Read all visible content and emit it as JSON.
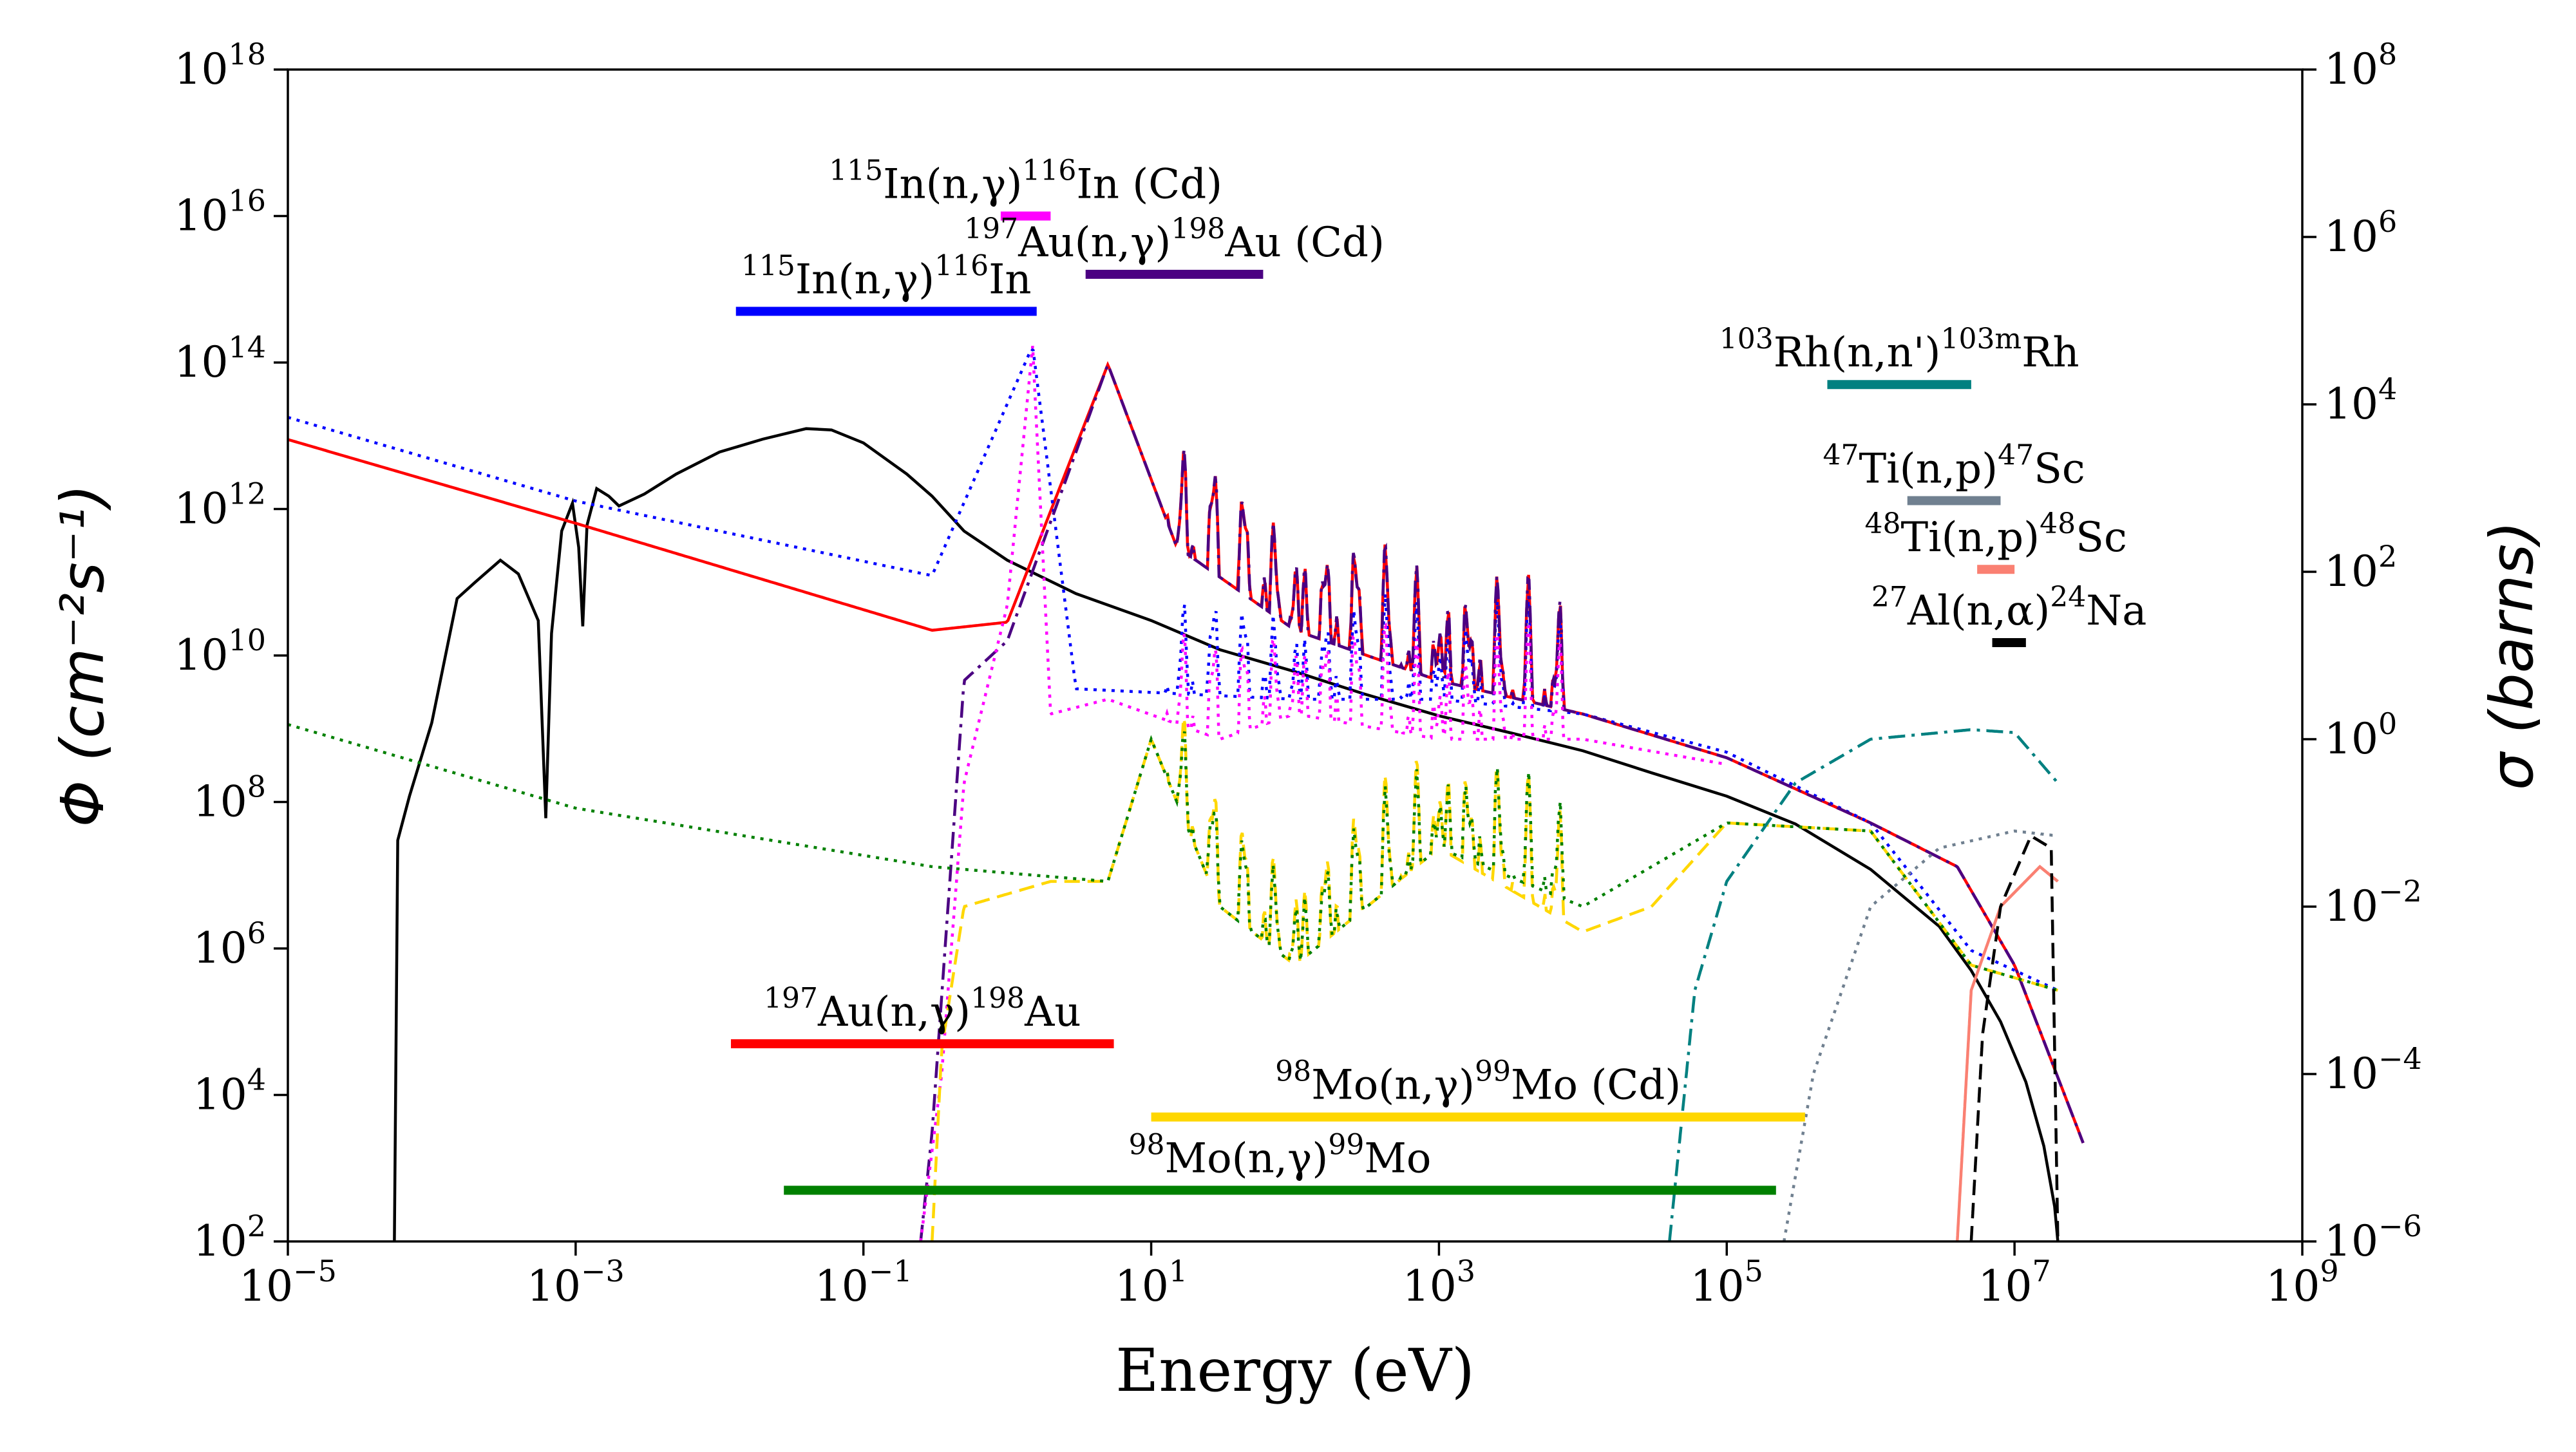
{
  "chart_data": {
    "type": "line",
    "xlabel": "Energy (eV)",
    "ylabel_left": "Φ (cm⁻²s⁻¹)",
    "ylabel_right": "σ (barns)",
    "x_scale": "log",
    "y_scale": "log",
    "xlim": [
      1e-05,
      1000000000.0
    ],
    "ylim_left": [
      100.0,
      1e+18
    ],
    "ylim_right": [
      1e-06,
      100000000.0
    ],
    "grid": false,
    "x_ticks": [
      {
        "base": "10",
        "exp": "−5",
        "value": 1e-05
      },
      {
        "base": "10",
        "exp": "−3",
        "value": 0.001
      },
      {
        "base": "10",
        "exp": "−1",
        "value": 0.1
      },
      {
        "base": "10",
        "exp": "1",
        "value": 10.0
      },
      {
        "base": "10",
        "exp": "3",
        "value": 1000.0
      },
      {
        "base": "10",
        "exp": "5",
        "value": 100000.0
      },
      {
        "base": "10",
        "exp": "7",
        "value": 10000000.0
      },
      {
        "base": "10",
        "exp": "9",
        "value": 1000000000.0
      }
    ],
    "y_ticks_left": [
      {
        "base": "10",
        "exp": "2",
        "value": 100.0
      },
      {
        "base": "10",
        "exp": "4",
        "value": 10000.0
      },
      {
        "base": "10",
        "exp": "6",
        "value": 1000000.0
      },
      {
        "base": "10",
        "exp": "8",
        "value": 100000000.0
      },
      {
        "base": "10",
        "exp": "10",
        "value": 10000000000.0
      },
      {
        "base": "10",
        "exp": "12",
        "value": 1000000000000.0
      },
      {
        "base": "10",
        "exp": "14",
        "value": 100000000000000.0
      },
      {
        "base": "10",
        "exp": "16",
        "value": 1e+16
      },
      {
        "base": "10",
        "exp": "18",
        "value": 1e+18
      }
    ],
    "y_ticks_right": [
      {
        "base": "10",
        "exp": "−6",
        "value": 1e-06
      },
      {
        "base": "10",
        "exp": "−4",
        "value": 0.0001
      },
      {
        "base": "10",
        "exp": "−2",
        "value": 0.01
      },
      {
        "base": "10",
        "exp": "0",
        "value": 1
      },
      {
        "base": "10",
        "exp": "2",
        "value": 100.0
      },
      {
        "base": "10",
        "exp": "4",
        "value": 10000.0
      },
      {
        "base": "10",
        "exp": "6",
        "value": 1000000.0
      },
      {
        "base": "10",
        "exp": "8",
        "value": 100000000.0
      }
    ],
    "flux_series": {
      "axis": "left",
      "color": "#000000",
      "style": "solid",
      "points": [
        [
          5.5e-05,
          100.0
        ],
        [
          5.8e-05,
          30000000.0
        ],
        [
          7e-05,
          120000000.0
        ],
        [
          0.0001,
          1200000000.0
        ],
        [
          0.00015,
          60000000000.0
        ],
        [
          0.0002,
          100000000000.0
        ],
        [
          0.0003,
          200000000000.0
        ],
        [
          0.0004,
          130000000000.0
        ],
        [
          0.00055,
          30000000000.0
        ],
        [
          0.00062,
          60000000.0
        ],
        [
          0.00068,
          20000000000.0
        ],
        [
          0.0008,
          500000000000.0
        ],
        [
          0.00095,
          1200000000000.0
        ],
        [
          0.00105,
          300000000000.0
        ],
        [
          0.00112,
          25000000000.0
        ],
        [
          0.0012,
          600000000000.0
        ],
        [
          0.0014,
          1900000000000.0
        ],
        [
          0.0017,
          1500000000000.0
        ],
        [
          0.002,
          1100000000000.0
        ],
        [
          0.003,
          1600000000000.0
        ],
        [
          0.005,
          3000000000000.0
        ],
        [
          0.01,
          6000000000000.0
        ],
        [
          0.02,
          9000000000000.0
        ],
        [
          0.04,
          12500000000000.0
        ],
        [
          0.06,
          12000000000000.0
        ],
        [
          0.1,
          8000000000000.0
        ],
        [
          0.2,
          3000000000000.0
        ],
        [
          0.3,
          1500000000000.0
        ],
        [
          0.5,
          500000000000.0
        ],
        [
          1,
          200000000000.0
        ],
        [
          3,
          70000000000.0
        ],
        [
          10,
          30000000000.0
        ],
        [
          30,
          12000000000.0
        ],
        [
          100,
          6000000000.0
        ],
        [
          300,
          3000000000.0
        ],
        [
          1000.0,
          1500000000.0
        ],
        [
          3000.0,
          900000000.0
        ],
        [
          10000.0,
          500000000.0
        ],
        [
          30000.0,
          250000000.0
        ],
        [
          100000.0,
          120000000.0
        ],
        [
          300000.0,
          50000000.0
        ],
        [
          1000000.0,
          12000000.0
        ],
        [
          3000000.0,
          2000000.0
        ],
        [
          5000000.0,
          500000.0
        ],
        [
          8000000.0,
          100000.0
        ],
        [
          12000000.0,
          15000.0
        ],
        [
          16000000.0,
          2000.0
        ],
        [
          19000000.0,
          300.0
        ],
        [
          20000000.0,
          100.0
        ]
      ]
    },
    "cross_sections": [
      {
        "axis": "right",
        "color": "#ff0000",
        "style": "solid",
        "anchors": [
          [
            1e-05,
            3800.0
          ],
          [
            0.001,
            380.0
          ],
          [
            0.3,
            20
          ],
          [
            1,
            25
          ],
          [
            5,
            30000.0
          ],
          [
            15,
            200.0
          ],
          [
            100,
            20.0
          ],
          [
            1000.0,
            5
          ],
          [
            10000.0,
            2
          ],
          [
            100000.0,
            0.6
          ],
          [
            1000000.0,
            0.1
          ],
          [
            4000000.0,
            0.03
          ],
          [
            10000000.0,
            0.002
          ],
          [
            30000000.0,
            1.5e-05
          ]
        ]
      },
      {
        "axis": "right",
        "color": "#0000ff",
        "style": "dotted",
        "anchors": [
          [
            1e-05,
            7000.0
          ],
          [
            0.001,
            700.0
          ],
          [
            0.3,
            90
          ],
          [
            1.5,
            50000.0
          ],
          [
            3,
            4
          ],
          [
            100,
            3
          ],
          [
            1000.0,
            3
          ],
          [
            10000.0,
            2
          ],
          [
            100000.0,
            0.7
          ],
          [
            1000000.0,
            0.1
          ],
          [
            5000000.0,
            0.003
          ],
          [
            20000000.0,
            0.001
          ]
        ]
      },
      {
        "axis": "right",
        "color": "#4b0082",
        "style": "dashdot",
        "anchors": [
          [
            0.25,
            1e-06
          ],
          [
            0.3,
            2e-05
          ],
          [
            0.5,
            5
          ],
          [
            1,
            15
          ],
          [
            5,
            30000.0
          ],
          [
            15,
            200.0
          ],
          [
            100,
            20.0
          ],
          [
            1000.0,
            5
          ],
          [
            10000.0,
            2
          ],
          [
            100000.0,
            0.6
          ],
          [
            1000000.0,
            0.1
          ],
          [
            4000000.0,
            0.03
          ],
          [
            10000000.0,
            0.002
          ],
          [
            30000000.0,
            1.5e-05
          ]
        ]
      },
      {
        "axis": "right",
        "color": "#ff00ff",
        "style": "dotted",
        "anchors": [
          [
            0.25,
            1e-06
          ],
          [
            0.35,
            0.0001
          ],
          [
            0.5,
            0.3
          ],
          [
            1,
            40
          ],
          [
            1.5,
            50000.0
          ],
          [
            2,
            2
          ],
          [
            5,
            3
          ],
          [
            30,
            1
          ],
          [
            100,
            2
          ],
          [
            1000.0,
            1
          ],
          [
            10000.0,
            1
          ],
          [
            100000.0,
            0.5
          ]
        ]
      },
      {
        "axis": "right",
        "color": "#ffd700",
        "style": "dashed",
        "anchors": [
          [
            0.3,
            1e-06
          ],
          [
            0.35,
            0.0002
          ],
          [
            0.5,
            0.01
          ],
          [
            2,
            0.02
          ],
          [
            5,
            0.02
          ],
          [
            10,
            1
          ],
          [
            30,
            0.01
          ],
          [
            100,
            0.002
          ],
          [
            1000.0,
            0.05
          ],
          [
            10000.0,
            0.005
          ],
          [
            30000.0,
            0.01
          ],
          [
            100000.0,
            0.1
          ],
          [
            1000000.0,
            0.08
          ],
          [
            5000000.0,
            0.002
          ],
          [
            20000000.0,
            0.001
          ]
        ]
      },
      {
        "axis": "right",
        "color": "#008000",
        "style": "dotted",
        "anchors": [
          [
            1e-05,
            1.5
          ],
          [
            0.001,
            0.15
          ],
          [
            0.3,
            0.03
          ],
          [
            5,
            0.02
          ],
          [
            10,
            1
          ],
          [
            30,
            0.01
          ],
          [
            100,
            0.002
          ],
          [
            1000.0,
            0.05
          ],
          [
            10000.0,
            0.01
          ],
          [
            100000.0,
            0.1
          ],
          [
            1000000.0,
            0.08
          ],
          [
            5000000.0,
            0.002
          ],
          [
            20000000.0,
            0.001
          ]
        ]
      },
      {
        "axis": "right",
        "color": "#008080",
        "style": "dashdot",
        "anchors": [
          [
            40000.0,
            1e-06
          ],
          [
            60000.0,
            0.001
          ],
          [
            100000.0,
            0.02
          ],
          [
            300000.0,
            0.3
          ],
          [
            1000000.0,
            1
          ],
          [
            5000000.0,
            1.3
          ],
          [
            10000000.0,
            1.2
          ],
          [
            20000000.0,
            0.3
          ]
        ]
      },
      {
        "axis": "right",
        "color": "#708090",
        "style": "dotted",
        "anchors": [
          [
            250000.0,
            1e-06
          ],
          [
            400000.0,
            0.0001
          ],
          [
            1000000.0,
            0.01
          ],
          [
            3000000.0,
            0.05
          ],
          [
            10000000.0,
            0.08
          ],
          [
            20000000.0,
            0.07
          ]
        ]
      },
      {
        "axis": "right",
        "color": "#fa8072",
        "style": "solid",
        "anchors": [
          [
            4000000.0,
            1e-06
          ],
          [
            5000000.0,
            0.001
          ],
          [
            8000000.0,
            0.01
          ],
          [
            15000000.0,
            0.03
          ],
          [
            20000000.0,
            0.02
          ]
        ]
      },
      {
        "axis": "right",
        "color": "#000000",
        "style": "dashed",
        "anchors": [
          [
            5000000.0,
            1e-06
          ],
          [
            6000000.0,
            0.0003
          ],
          [
            8000000.0,
            0.01
          ],
          [
            13000000.0,
            0.07
          ],
          [
            18000000.0,
            0.05
          ],
          [
            20000000.0,
            1e-06
          ]
        ]
      }
    ],
    "energy_ranges": [
      {
        "label": "In(n,γ)In (Cd)",
        "sup1": "115",
        "sup2": "116",
        "sup3": "",
        "color": "#ff00ff",
        "e_range": [
          0.9,
          2.0
        ],
        "flux_level": 1e+16
      },
      {
        "label": "Au(n,γ)Au (Cd)",
        "sup1": "197",
        "sup2": "198",
        "sup3": "",
        "color": "#4b0082",
        "e_range": [
          3.5,
          60
        ],
        "flux_level": 1600000000000000.0
      },
      {
        "label": "In(n,γ)In",
        "sup1": "115",
        "sup2": "116",
        "sup3": "",
        "color": "#0000ff",
        "e_range": [
          0.013,
          1.6
        ],
        "flux_level": 500000000000000.0
      },
      {
        "label": "Rh(n,n')Rh",
        "sup1": "103",
        "sup2": "103",
        "sup3": "m",
        "color": "#008080",
        "e_range": [
          500000.0,
          5000000.0
        ],
        "flux_level": 50000000000000.0
      },
      {
        "label": "Ti(n,p)Sc",
        "sup1": "47",
        "sup2": "47",
        "sup3": "",
        "color": "#708090",
        "e_range": [
          1800000.0,
          8000000.0
        ],
        "flux_level": 1300000000000.0
      },
      {
        "label": "Ti(n,p)Sc",
        "sup1": "48",
        "sup2": "48",
        "sup3": "",
        "color": "#fa8072",
        "e_range": [
          5500000.0,
          10000000.0
        ],
        "flux_level": 150000000000.0
      },
      {
        "label": "Al(n,α)Na",
        "sup1": "27",
        "sup2": "24",
        "sup3": "",
        "color": "#000000",
        "e_range": [
          7000000.0,
          12000000.0
        ],
        "flux_level": 15000000000.0
      },
      {
        "label": "Au(n,γ)Au",
        "sup1": "197",
        "sup2": "198",
        "sup3": "",
        "color": "#ff0000",
        "e_range": [
          0.012,
          5.5
        ],
        "flux_level": 50000.0
      },
      {
        "label": "Mo(n,γ)Mo (Cd)",
        "sup1": "98",
        "sup2": "99",
        "sup3": "",
        "color": "#ffd700",
        "e_range": [
          10,
          350000.0
        ],
        "flux_level": 5000.0
      },
      {
        "label": "Mo(n,γ)Mo",
        "sup1": "98",
        "sup2": "99",
        "sup3": "",
        "color": "#008000",
        "e_range": [
          0.028,
          220000.0
        ],
        "flux_level": 500.0
      }
    ]
  }
}
